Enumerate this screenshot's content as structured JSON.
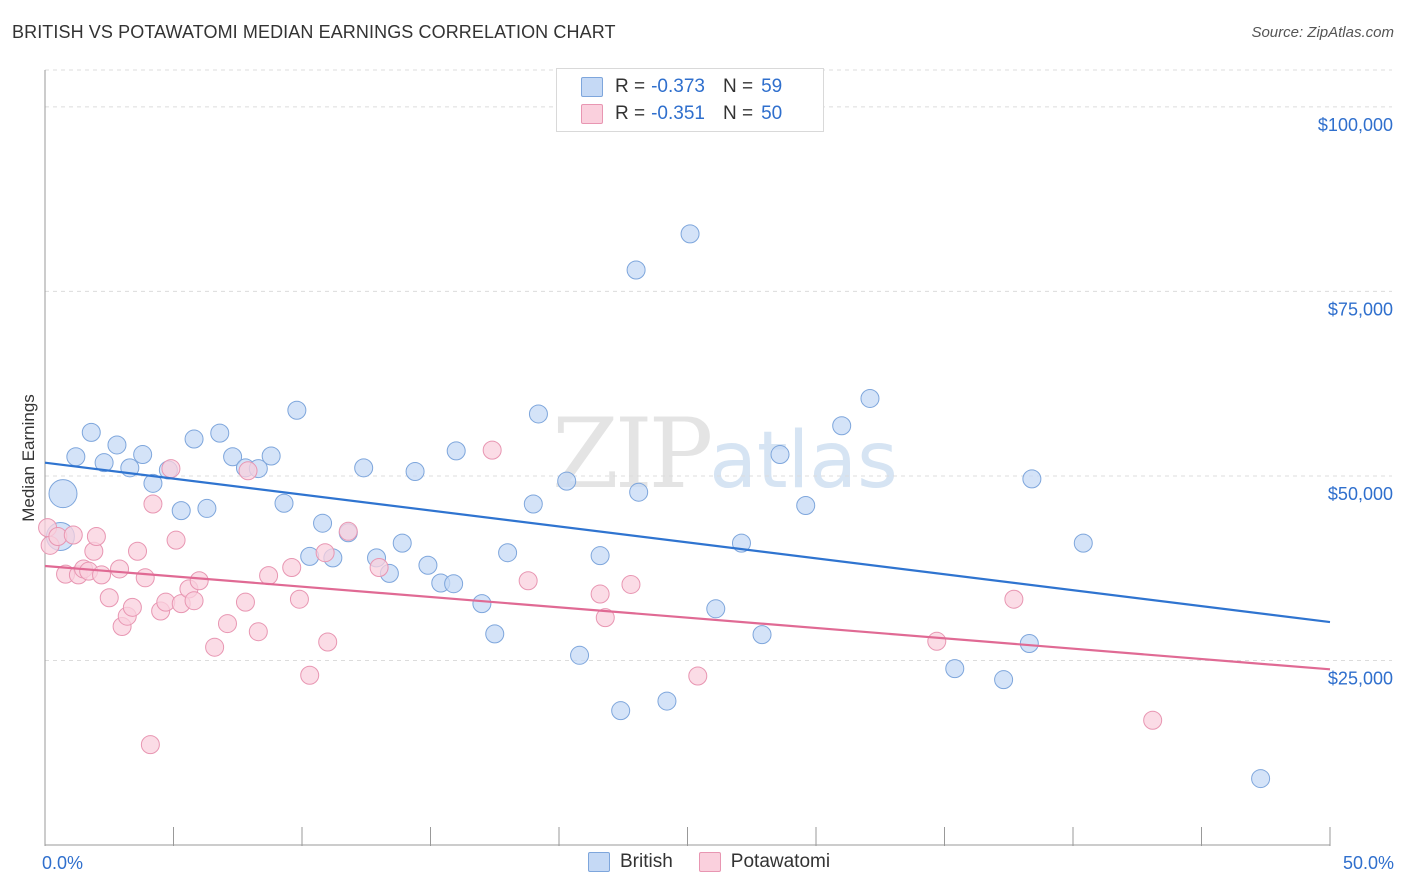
{
  "title": "BRITISH VS POTAWATOMI MEDIAN EARNINGS CORRELATION CHART",
  "source": "Source: ZipAtlas.com",
  "watermark": {
    "zip": "ZIP",
    "atlas": "atlas"
  },
  "legend_top": {
    "rows": [
      {
        "r_label": "R =",
        "r_value": "-0.373",
        "n_label": "N =",
        "n_value": "59"
      },
      {
        "r_label": "R =",
        "r_value": "-0.351",
        "n_label": "N =",
        "n_value": "50"
      }
    ]
  },
  "legend_bottom": {
    "british": "British",
    "potawatomi": "Potawatomi"
  },
  "colors": {
    "british_fill": "#c5d9f5",
    "british_stroke": "#7ea6dc",
    "british_line": "#2f74d0",
    "potawatomi_fill": "#fad0dd",
    "potawatomi_stroke": "#e896b2",
    "potawatomi_line": "#e06a94",
    "axis_label": "#2f6fcd",
    "grid": "#dcdcdc"
  },
  "chart_data": {
    "type": "scatter",
    "title": "BRITISH VS POTAWATOMI MEDIAN EARNINGS CORRELATION CHART",
    "xlabel": "",
    "ylabel": "Median Earnings",
    "xlim": [
      0,
      50
    ],
    "ylim": [
      0,
      105000
    ],
    "x_tick_labels": [
      "0.0%",
      "50.0%"
    ],
    "y_ticks": [
      25000,
      50000,
      75000,
      100000
    ],
    "y_tick_labels": [
      "$25,000",
      "$50,000",
      "$75,000",
      "$100,000"
    ],
    "series": [
      {
        "name": "British",
        "r": -0.373,
        "n": 59,
        "trend": {
          "x": [
            0,
            50
          ],
          "y": [
            51800,
            30200
          ]
        },
        "points": [
          [
            0.7,
            47600
          ],
          [
            0.6,
            41800
          ],
          [
            1.2,
            52600
          ],
          [
            1.8,
            55900
          ],
          [
            2.3,
            51800
          ],
          [
            2.8,
            54200
          ],
          [
            3.3,
            51100
          ],
          [
            3.8,
            52900
          ],
          [
            4.2,
            49000
          ],
          [
            4.8,
            50800
          ],
          [
            5.3,
            45300
          ],
          [
            5.8,
            55000
          ],
          [
            6.3,
            45600
          ],
          [
            6.8,
            55800
          ],
          [
            7.3,
            52600
          ],
          [
            7.8,
            51100
          ],
          [
            8.3,
            51000
          ],
          [
            8.8,
            52700
          ],
          [
            9.3,
            46300
          ],
          [
            9.8,
            58900
          ],
          [
            10.3,
            39100
          ],
          [
            10.8,
            43600
          ],
          [
            11.2,
            38900
          ],
          [
            11.8,
            42300
          ],
          [
            12.4,
            51100
          ],
          [
            12.9,
            38900
          ],
          [
            13.4,
            36800
          ],
          [
            13.9,
            40900
          ],
          [
            14.4,
            50600
          ],
          [
            14.9,
            37900
          ],
          [
            15.4,
            35500
          ],
          [
            16.0,
            53400
          ],
          [
            15.9,
            35400
          ],
          [
            17.0,
            32700
          ],
          [
            17.5,
            28600
          ],
          [
            18.0,
            39600
          ],
          [
            19.0,
            46200
          ],
          [
            19.2,
            58400
          ],
          [
            20.3,
            49300
          ],
          [
            20.8,
            25700
          ],
          [
            21.6,
            39200
          ],
          [
            22.4,
            18200
          ],
          [
            23.0,
            77900
          ],
          [
            23.1,
            47800
          ],
          [
            24.2,
            19500
          ],
          [
            25.1,
            82800
          ],
          [
            26.1,
            32000
          ],
          [
            27.1,
            40900
          ],
          [
            27.9,
            28500
          ],
          [
            28.6,
            52900
          ],
          [
            29.6,
            46000
          ],
          [
            31.0,
            56800
          ],
          [
            32.1,
            60500
          ],
          [
            35.4,
            23900
          ],
          [
            37.3,
            22400
          ],
          [
            38.3,
            27300
          ],
          [
            38.4,
            49600
          ],
          [
            40.4,
            40900
          ],
          [
            47.3,
            9000
          ]
        ]
      },
      {
        "name": "Potawatomi",
        "r": -0.351,
        "n": 50,
        "trend": {
          "x": [
            0,
            50
          ],
          "y": [
            37800,
            23800
          ]
        },
        "points": [
          [
            0.1,
            43000
          ],
          [
            0.2,
            40600
          ],
          [
            0.5,
            41800
          ],
          [
            0.8,
            36700
          ],
          [
            1.1,
            42000
          ],
          [
            1.3,
            36600
          ],
          [
            1.5,
            37400
          ],
          [
            1.7,
            37100
          ],
          [
            1.9,
            39800
          ],
          [
            2.0,
            41800
          ],
          [
            2.2,
            36600
          ],
          [
            2.5,
            33500
          ],
          [
            2.9,
            37400
          ],
          [
            3.0,
            29600
          ],
          [
            3.2,
            31000
          ],
          [
            3.4,
            32200
          ],
          [
            3.6,
            39800
          ],
          [
            3.9,
            36200
          ],
          [
            4.1,
            13600
          ],
          [
            4.2,
            46200
          ],
          [
            4.5,
            31700
          ],
          [
            4.7,
            32900
          ],
          [
            4.9,
            51000
          ],
          [
            5.1,
            41300
          ],
          [
            5.3,
            32700
          ],
          [
            5.6,
            34700
          ],
          [
            5.8,
            33100
          ],
          [
            6.0,
            35800
          ],
          [
            6.6,
            26800
          ],
          [
            7.1,
            30000
          ],
          [
            7.8,
            32900
          ],
          [
            7.9,
            50700
          ],
          [
            8.3,
            28900
          ],
          [
            8.7,
            36500
          ],
          [
            9.6,
            37600
          ],
          [
            9.9,
            33300
          ],
          [
            10.3,
            23000
          ],
          [
            10.9,
            39600
          ],
          [
            11.0,
            27500
          ],
          [
            11.8,
            42500
          ],
          [
            13.0,
            37600
          ],
          [
            17.4,
            53500
          ],
          [
            18.8,
            35800
          ],
          [
            21.6,
            34000
          ],
          [
            21.8,
            30800
          ],
          [
            22.8,
            35300
          ],
          [
            25.4,
            22900
          ],
          [
            34.7,
            27600
          ],
          [
            37.7,
            33300
          ],
          [
            43.1,
            16900
          ]
        ]
      }
    ]
  }
}
